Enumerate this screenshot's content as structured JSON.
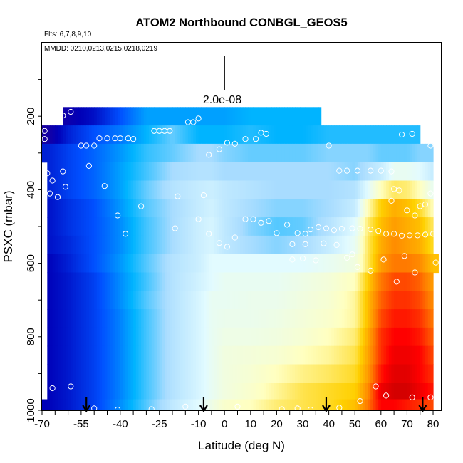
{
  "chart_data": {
    "type": "heatmap",
    "title": "ATOM2 Northbound CONBGL_GEOS5",
    "subtitle": "Flts: 6,7,8,9,10",
    "annotation": "MMDD: 0210,0213,0215,0218,0219",
    "xlabel": "Latitude (deg N)",
    "ylabel": "PSXC (mbar)",
    "xlim": [
      -70,
      83
    ],
    "ylim": [
      1000,
      0
    ],
    "x_ticks": [
      -70,
      -55,
      -40,
      -25,
      -10,
      0,
      10,
      20,
      30,
      40,
      50,
      60,
      70,
      80
    ],
    "y_ticks": [
      200,
      400,
      600,
      800,
      1000
    ],
    "scale_label": "2.0e-08",
    "color_scale": [
      "#3a0080",
      "#0000b8",
      "#0050ff",
      "#00b4ff",
      "#a8dcff",
      "#e2fbff",
      "#ffffc0",
      "#ffd000",
      "#ff7a00",
      "#ff0000",
      "#b80000"
    ],
    "lat_anchors": [
      -68,
      -60,
      -50,
      -40,
      -30,
      -20,
      -10,
      -5,
      0,
      10,
      20,
      30,
      40,
      50,
      55,
      60,
      65,
      70,
      75,
      80
    ],
    "levels": [
      {
        "p": 200,
        "lat_range": [
          -62,
          37
        ],
        "values": [
          0.05,
          0.08,
          0.12,
          0.2,
          0.28,
          0.28,
          0.28,
          0.28,
          0.28,
          0.3,
          0.3,
          0.3,
          0.3,
          0.3,
          0.3,
          0.3,
          0.3,
          0.3,
          0.3,
          0.3
        ]
      },
      {
        "p": 250,
        "lat_range": [
          -70,
          75
        ],
        "values": [
          0.06,
          0.14,
          0.2,
          0.24,
          0.3,
          0.36,
          0.3,
          0.3,
          0.3,
          0.32,
          0.3,
          0.3,
          0.32,
          0.32,
          0.32,
          0.32,
          0.32,
          0.32,
          0.32,
          0.32
        ]
      },
      {
        "p": 300,
        "lat_range": [
          -70,
          80
        ],
        "values": [
          0.14,
          0.18,
          0.22,
          0.27,
          0.33,
          0.36,
          0.4,
          0.4,
          0.38,
          0.36,
          0.36,
          0.36,
          0.38,
          0.38,
          0.38,
          0.36,
          0.36,
          0.36,
          0.38,
          0.38
        ]
      },
      {
        "p": 350,
        "lat_range": [
          -68,
          80
        ],
        "values": [
          0.14,
          0.18,
          0.22,
          0.28,
          0.34,
          0.4,
          0.42,
          0.42,
          0.4,
          0.4,
          0.4,
          0.4,
          0.4,
          0.38,
          0.42,
          0.45,
          0.52,
          0.52,
          0.5,
          0.45
        ]
      },
      {
        "p": 400,
        "lat_range": [
          -68,
          80
        ],
        "values": [
          0.14,
          0.18,
          0.22,
          0.28,
          0.36,
          0.42,
          0.45,
          0.46,
          0.44,
          0.42,
          0.4,
          0.4,
          0.4,
          0.42,
          0.5,
          0.6,
          0.65,
          0.64,
          0.6,
          0.52
        ]
      },
      {
        "p": 450,
        "lat_range": [
          -68,
          80
        ],
        "values": [
          0.12,
          0.16,
          0.2,
          0.27,
          0.35,
          0.4,
          0.45,
          0.47,
          0.44,
          0.4,
          0.38,
          0.38,
          0.4,
          0.45,
          0.6,
          0.7,
          0.74,
          0.72,
          0.68,
          0.6
        ]
      },
      {
        "p": 500,
        "lat_range": [
          -68,
          80
        ],
        "values": [
          0.12,
          0.16,
          0.2,
          0.26,
          0.34,
          0.4,
          0.46,
          0.48,
          0.44,
          0.38,
          0.35,
          0.36,
          0.42,
          0.5,
          0.64,
          0.72,
          0.76,
          0.74,
          0.72,
          0.65
        ]
      },
      {
        "p": 550,
        "lat_range": [
          -68,
          80
        ],
        "values": [
          0.12,
          0.15,
          0.2,
          0.26,
          0.34,
          0.4,
          0.46,
          0.48,
          0.44,
          0.4,
          0.38,
          0.4,
          0.45,
          0.52,
          0.65,
          0.74,
          0.78,
          0.76,
          0.74,
          0.68
        ]
      },
      {
        "p": 600,
        "lat_range": [
          -68,
          82
        ],
        "values": [
          0.1,
          0.14,
          0.2,
          0.27,
          0.35,
          0.42,
          0.46,
          0.5,
          0.5,
          0.5,
          0.5,
          0.5,
          0.52,
          0.55,
          0.65,
          0.76,
          0.8,
          0.8,
          0.78,
          0.72
        ]
      },
      {
        "p": 650,
        "lat_range": [
          -68,
          80
        ],
        "values": [
          0.1,
          0.13,
          0.18,
          0.26,
          0.34,
          0.42,
          0.47,
          0.5,
          0.52,
          0.52,
          0.52,
          0.54,
          0.56,
          0.6,
          0.7,
          0.8,
          0.84,
          0.84,
          0.82,
          0.76
        ]
      },
      {
        "p": 700,
        "lat_range": [
          -68,
          80
        ],
        "values": [
          0.1,
          0.13,
          0.18,
          0.26,
          0.35,
          0.42,
          0.48,
          0.52,
          0.52,
          0.53,
          0.53,
          0.55,
          0.57,
          0.62,
          0.72,
          0.82,
          0.86,
          0.86,
          0.84,
          0.78
        ]
      },
      {
        "p": 750,
        "lat_range": [
          -68,
          80
        ],
        "values": [
          0.1,
          0.13,
          0.18,
          0.25,
          0.34,
          0.42,
          0.48,
          0.52,
          0.53,
          0.53,
          0.54,
          0.56,
          0.58,
          0.62,
          0.72,
          0.84,
          0.88,
          0.88,
          0.86,
          0.8
        ]
      },
      {
        "p": 800,
        "lat_range": [
          -68,
          80
        ],
        "values": [
          0.1,
          0.13,
          0.18,
          0.25,
          0.34,
          0.42,
          0.48,
          0.52,
          0.54,
          0.54,
          0.55,
          0.57,
          0.6,
          0.64,
          0.74,
          0.86,
          0.9,
          0.9,
          0.88,
          0.82
        ]
      },
      {
        "p": 850,
        "lat_range": [
          -68,
          80
        ],
        "values": [
          0.1,
          0.13,
          0.18,
          0.25,
          0.34,
          0.42,
          0.48,
          0.52,
          0.55,
          0.56,
          0.57,
          0.6,
          0.62,
          0.66,
          0.75,
          0.86,
          0.92,
          0.92,
          0.9,
          0.84
        ]
      },
      {
        "p": 900,
        "lat_range": [
          -68,
          80
        ],
        "values": [
          0.1,
          0.13,
          0.18,
          0.25,
          0.34,
          0.42,
          0.48,
          0.52,
          0.55,
          0.57,
          0.6,
          0.63,
          0.65,
          0.68,
          0.76,
          0.88,
          0.94,
          0.94,
          0.9,
          0.86
        ]
      },
      {
        "p": 950,
        "lat_range": [
          -68,
          80
        ],
        "values": [
          0.1,
          0.13,
          0.18,
          0.25,
          0.34,
          0.42,
          0.48,
          0.52,
          0.55,
          0.58,
          0.62,
          0.66,
          0.68,
          0.7,
          0.78,
          0.92,
          0.96,
          0.96,
          0.92,
          0.88
        ]
      },
      {
        "p": 990,
        "lat_range": [
          -70,
          80
        ],
        "values": [
          0.1,
          0.13,
          0.18,
          0.26,
          0.35,
          0.44,
          0.5,
          0.54,
          0.58,
          0.6,
          0.64,
          0.66,
          0.68,
          0.72,
          0.8,
          0.9,
          0.9,
          0.88,
          0.86,
          0.84
        ]
      }
    ],
    "points": [
      {
        "lat": -69,
        "p": 240
      },
      {
        "lat": -69,
        "p": 262
      },
      {
        "lat": -67,
        "p": 215
      },
      {
        "lat": -62,
        "p": 198
      },
      {
        "lat": -59,
        "p": 188
      },
      {
        "lat": -68,
        "p": 355
      },
      {
        "lat": -66,
        "p": 375
      },
      {
        "lat": -64,
        "p": 420
      },
      {
        "lat": -62,
        "p": 350
      },
      {
        "lat": -61,
        "p": 392
      },
      {
        "lat": -67,
        "p": 410
      },
      {
        "lat": -55,
        "p": 280
      },
      {
        "lat": -53,
        "p": 280
      },
      {
        "lat": -50,
        "p": 280
      },
      {
        "lat": -52,
        "p": 335
      },
      {
        "lat": -48,
        "p": 260
      },
      {
        "lat": -45,
        "p": 260
      },
      {
        "lat": -42,
        "p": 260
      },
      {
        "lat": -40,
        "p": 260
      },
      {
        "lat": -37,
        "p": 260
      },
      {
        "lat": -35,
        "p": 262
      },
      {
        "lat": -46,
        "p": 390
      },
      {
        "lat": -41,
        "p": 470
      },
      {
        "lat": -38,
        "p": 520
      },
      {
        "lat": -32,
        "p": 445
      },
      {
        "lat": -27,
        "p": 240
      },
      {
        "lat": -25,
        "p": 240
      },
      {
        "lat": -23,
        "p": 240
      },
      {
        "lat": -21,
        "p": 240
      },
      {
        "lat": -18,
        "p": 418
      },
      {
        "lat": -19,
        "p": 505
      },
      {
        "lat": -14,
        "p": 216
      },
      {
        "lat": -12,
        "p": 216
      },
      {
        "lat": -10,
        "p": 206
      },
      {
        "lat": -8,
        "p": 415
      },
      {
        "lat": -6,
        "p": 305
      },
      {
        "lat": -2,
        "p": 290
      },
      {
        "lat": 1,
        "p": 272
      },
      {
        "lat": 4,
        "p": 275
      },
      {
        "lat": 8,
        "p": 262
      },
      {
        "lat": 12,
        "p": 262
      },
      {
        "lat": 14,
        "p": 245
      },
      {
        "lat": 16,
        "p": 248
      },
      {
        "lat": -10,
        "p": 480
      },
      {
        "lat": -6,
        "p": 520
      },
      {
        "lat": -2,
        "p": 545
      },
      {
        "lat": 1,
        "p": 555
      },
      {
        "lat": 4,
        "p": 530
      },
      {
        "lat": 8,
        "p": 480
      },
      {
        "lat": 11,
        "p": 480
      },
      {
        "lat": 14,
        "p": 490
      },
      {
        "lat": 17,
        "p": 485
      },
      {
        "lat": 20,
        "p": 518
      },
      {
        "lat": 24,
        "p": 495
      },
      {
        "lat": 28,
        "p": 518
      },
      {
        "lat": 31,
        "p": 520
      },
      {
        "lat": 33,
        "p": 508
      },
      {
        "lat": 36,
        "p": 502
      },
      {
        "lat": 39,
        "p": 505
      },
      {
        "lat": 42,
        "p": 510
      },
      {
        "lat": 45,
        "p": 506
      },
      {
        "lat": 49,
        "p": 505
      },
      {
        "lat": 52,
        "p": 506
      },
      {
        "lat": 56,
        "p": 508
      },
      {
        "lat": 59,
        "p": 512
      },
      {
        "lat": 62,
        "p": 520
      },
      {
        "lat": 65,
        "p": 520
      },
      {
        "lat": 68,
        "p": 525
      },
      {
        "lat": 71,
        "p": 524
      },
      {
        "lat": 74,
        "p": 524
      },
      {
        "lat": 77,
        "p": 522
      },
      {
        "lat": 80,
        "p": 520
      },
      {
        "lat": 81,
        "p": 598
      },
      {
        "lat": 40,
        "p": 280
      },
      {
        "lat": 44,
        "p": 348
      },
      {
        "lat": 47,
        "p": 348
      },
      {
        "lat": 51,
        "p": 348
      },
      {
        "lat": 56,
        "p": 348
      },
      {
        "lat": 60,
        "p": 348
      },
      {
        "lat": 64,
        "p": 350
      },
      {
        "lat": 68,
        "p": 250
      },
      {
        "lat": 72,
        "p": 248
      },
      {
        "lat": 77,
        "p": 262
      },
      {
        "lat": 79,
        "p": 280
      },
      {
        "lat": 81,
        "p": 278
      },
      {
        "lat": 65,
        "p": 398
      },
      {
        "lat": 67,
        "p": 402
      },
      {
        "lat": 64,
        "p": 430
      },
      {
        "lat": 70,
        "p": 456
      },
      {
        "lat": 73,
        "p": 470
      },
      {
        "lat": 75,
        "p": 445
      },
      {
        "lat": 77,
        "p": 440
      },
      {
        "lat": 79,
        "p": 410
      },
      {
        "lat": 26,
        "p": 548
      },
      {
        "lat": 31,
        "p": 548
      },
      {
        "lat": 47,
        "p": 585
      },
      {
        "lat": 49,
        "p": 576
      },
      {
        "lat": 51,
        "p": 610
      },
      {
        "lat": 56,
        "p": 620
      },
      {
        "lat": 61,
        "p": 590
      },
      {
        "lat": 66,
        "p": 650
      },
      {
        "lat": 69,
        "p": 580
      },
      {
        "lat": 73,
        "p": 625
      },
      {
        "lat": 26,
        "p": 590
      },
      {
        "lat": 30,
        "p": 587
      },
      {
        "lat": 35,
        "p": 592
      },
      {
        "lat": 38,
        "p": 546
      },
      {
        "lat": 43,
        "p": 550
      },
      {
        "lat": -66,
        "p": 940
      },
      {
        "lat": -59,
        "p": 935
      },
      {
        "lat": -50,
        "p": 995
      },
      {
        "lat": -41,
        "p": 998
      },
      {
        "lat": -28,
        "p": 997
      },
      {
        "lat": -15,
        "p": 990
      },
      {
        "lat": -7,
        "p": 997
      },
      {
        "lat": 5,
        "p": 990
      },
      {
        "lat": 22,
        "p": 997
      },
      {
        "lat": 28,
        "p": 995
      },
      {
        "lat": 33,
        "p": 998
      },
      {
        "lat": 44,
        "p": 993
      },
      {
        "lat": 52,
        "p": 975
      },
      {
        "lat": 58,
        "p": 935
      },
      {
        "lat": 62,
        "p": 960
      },
      {
        "lat": 79,
        "p": 965
      },
      {
        "lat": 72,
        "p": 965
      }
    ],
    "arrows": [
      -53,
      -8,
      39,
      76
    ],
    "scale_bar": {
      "lat": 0
    }
  }
}
